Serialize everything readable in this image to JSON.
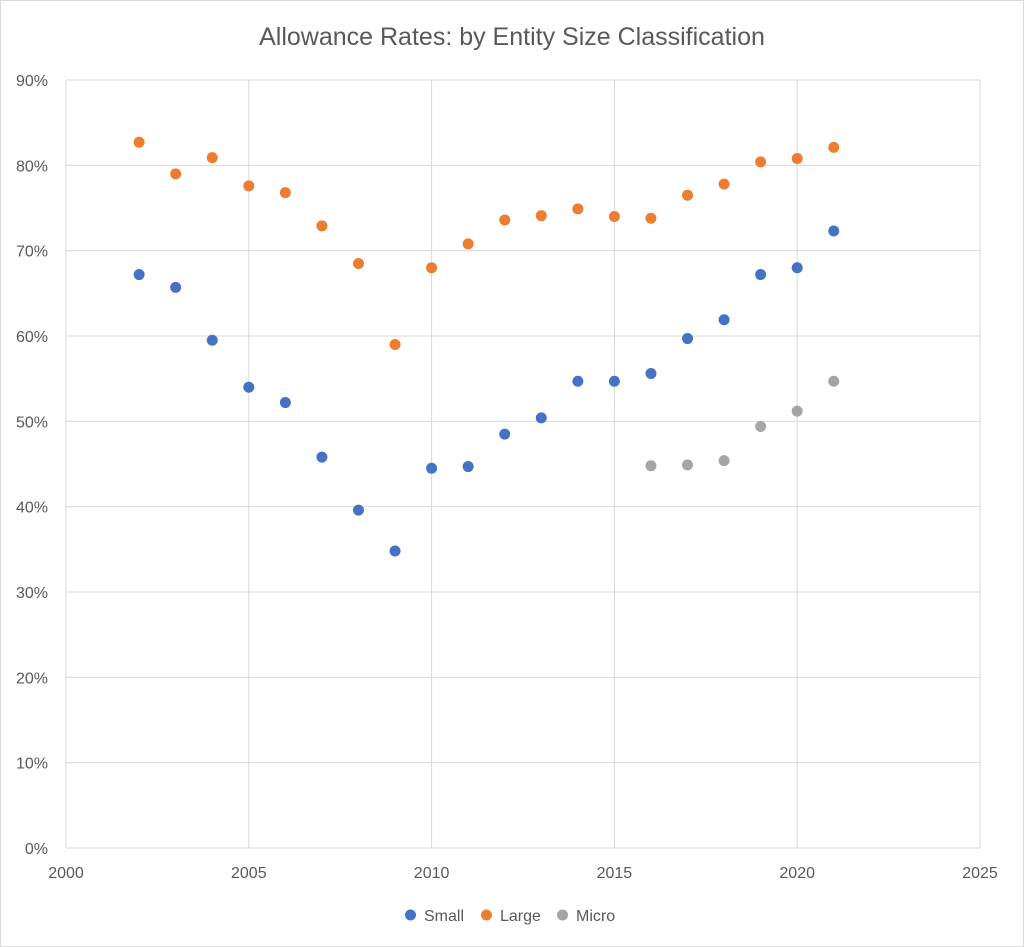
{
  "chart_data": {
    "type": "scatter",
    "title": "Allowance Rates: by Entity Size Classification",
    "xlabel": "",
    "ylabel": "",
    "xlim": [
      2000,
      2025
    ],
    "ylim": [
      0,
      0.9
    ],
    "x_ticks": [
      2000,
      2005,
      2010,
      2015,
      2020,
      2025
    ],
    "x_tick_labels": [
      "2000",
      "2005",
      "2010",
      "2015",
      "2020",
      "2025"
    ],
    "y_ticks": [
      0,
      0.1,
      0.2,
      0.3,
      0.4,
      0.5,
      0.6,
      0.7,
      0.8,
      0.9
    ],
    "y_tick_labels": [
      "0%",
      "10%",
      "20%",
      "30%",
      "40%",
      "50%",
      "60%",
      "70%",
      "80%",
      "90%"
    ],
    "grid": true,
    "legend_position": "bottom",
    "series": [
      {
        "name": "Small",
        "color": "#4472c4",
        "x": [
          2002,
          2003,
          2004,
          2005,
          2006,
          2007,
          2008,
          2009,
          2010,
          2011,
          2012,
          2013,
          2014,
          2015,
          2016,
          2017,
          2018,
          2019,
          2020,
          2021
        ],
        "y": [
          0.672,
          0.657,
          0.595,
          0.54,
          0.522,
          0.458,
          0.396,
          0.348,
          0.445,
          0.447,
          0.485,
          0.504,
          0.547,
          0.547,
          0.556,
          0.597,
          0.619,
          0.672,
          0.68,
          0.723
        ]
      },
      {
        "name": "Large",
        "color": "#ed7d31",
        "x": [
          2002,
          2003,
          2004,
          2005,
          2006,
          2007,
          2008,
          2009,
          2010,
          2011,
          2012,
          2013,
          2014,
          2015,
          2016,
          2017,
          2018,
          2019,
          2020,
          2021
        ],
        "y": [
          0.827,
          0.79,
          0.809,
          0.776,
          0.768,
          0.729,
          0.685,
          0.59,
          0.68,
          0.708,
          0.736,
          0.741,
          0.749,
          0.74,
          0.738,
          0.765,
          0.778,
          0.804,
          0.808,
          0.821
        ]
      },
      {
        "name": "Micro",
        "color": "#a5a5a5",
        "x": [
          2016,
          2017,
          2018,
          2019,
          2020,
          2021
        ],
        "y": [
          0.448,
          0.449,
          0.454,
          0.494,
          0.512,
          0.547
        ]
      }
    ]
  }
}
